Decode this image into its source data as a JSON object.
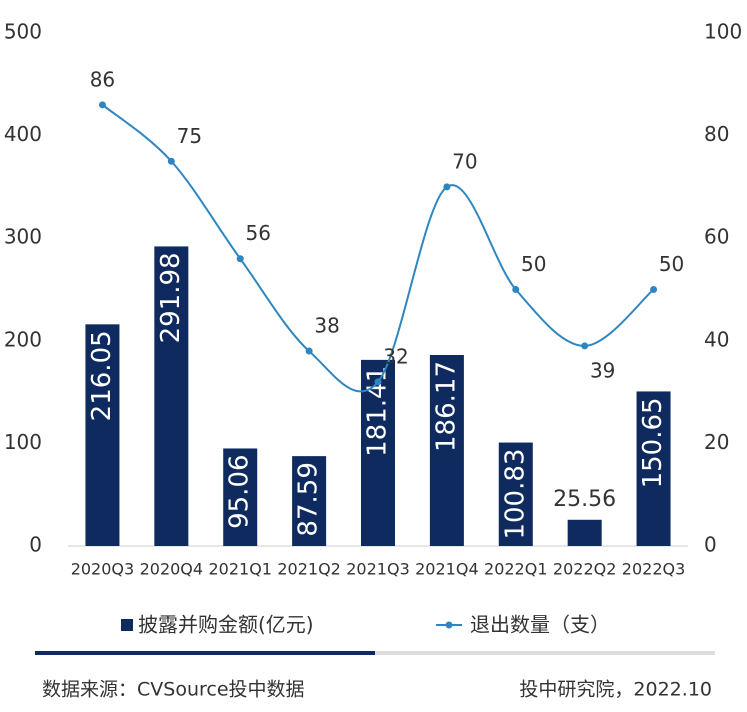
{
  "chart_data": {
    "type": "bar",
    "categories": [
      "2020Q3",
      "2020Q4",
      "2021Q1",
      "2021Q2",
      "2021Q3",
      "2021Q4",
      "2022Q1",
      "2022Q2",
      "2022Q3"
    ],
    "series": [
      {
        "name": "披露并购金额(亿元)",
        "type": "bar",
        "color": "#0e2a5e",
        "values": [
          216.05,
          291.98,
          95.06,
          87.59,
          181.41,
          186.17,
          100.83,
          25.56,
          150.65
        ]
      },
      {
        "name": "退出数量（支）",
        "type": "line",
        "axis": "y2",
        "color": "#2e86c1",
        "values": [
          86,
          75,
          56,
          38,
          32,
          70,
          50,
          39,
          50
        ]
      }
    ],
    "ylim": [
      0,
      500
    ],
    "yticks": [
      0,
      100,
      200,
      300,
      400,
      500
    ],
    "y2lim": [
      0,
      100
    ],
    "y2ticks": [
      0,
      20,
      40,
      60,
      80,
      100
    ],
    "footer": {
      "source": "数据来源：CVSource投中数据",
      "credit": "投中研究院，2022.10"
    }
  }
}
